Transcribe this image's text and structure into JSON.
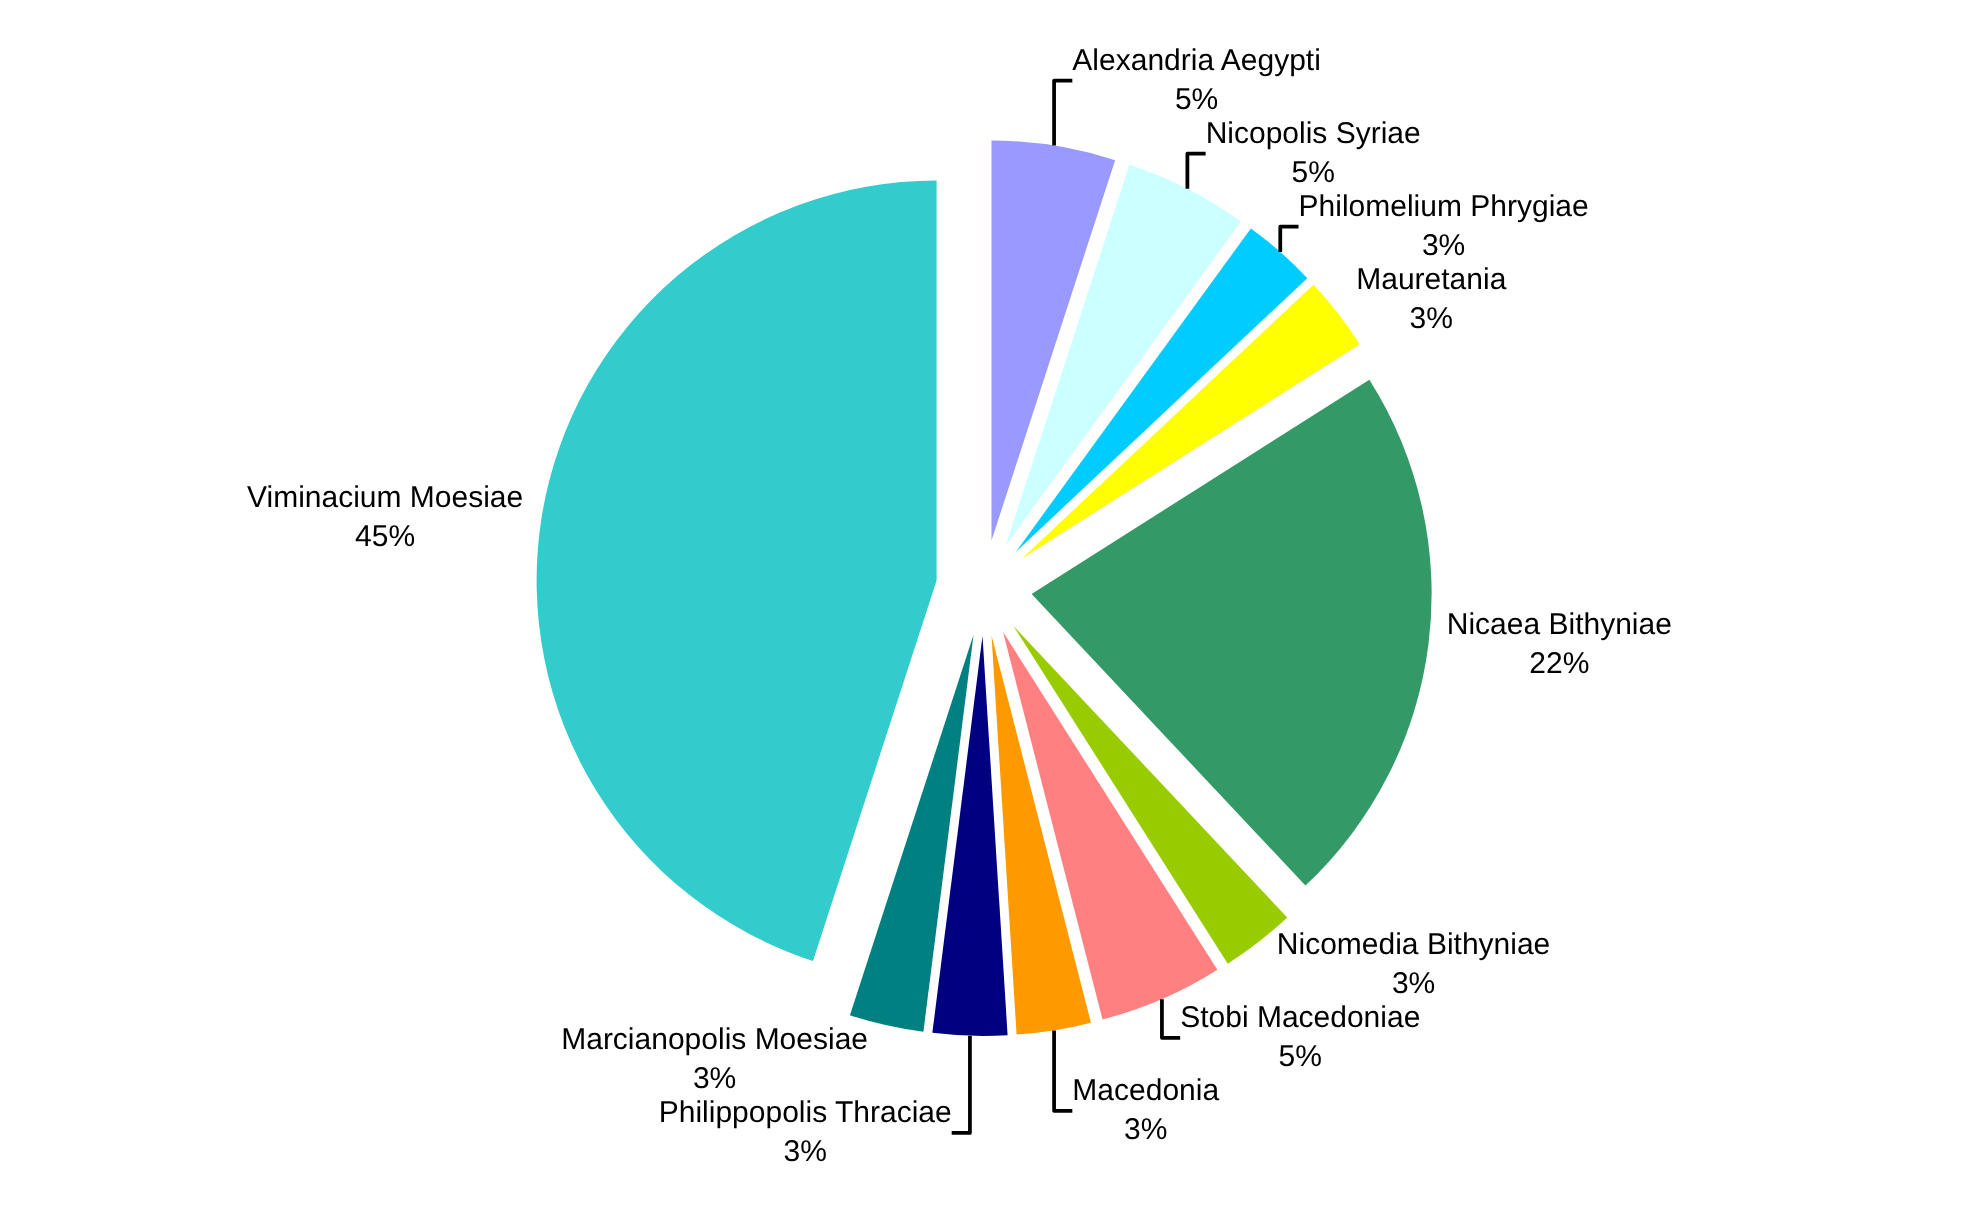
{
  "chart_data": {
    "type": "pie",
    "categories": [
      "Alexandria Aegypti",
      "Nicopolis Syriae",
      "Philomelium Phrygiae",
      "Mauretania",
      "Nicaea Bithyniae",
      "Nicomedia Bithyniae",
      "Stobi Macedoniae",
      "Macedonia",
      "Philippopolis Thraciae",
      "Marcianopolis Moesiae",
      "Viminacium Moesiae"
    ],
    "values": [
      5,
      5,
      3,
      3,
      22,
      3,
      5,
      3,
      3,
      3,
      45
    ],
    "value_labels": [
      "5%",
      "5%",
      "3%",
      "3%",
      "22%",
      "3%",
      "5%",
      "3%",
      "3%",
      "3%",
      "45%"
    ],
    "colors": [
      "#9999ff",
      "#ccffff",
      "#00ccff",
      "#ffff00",
      "#339966",
      "#99cc00",
      "#ff8080",
      "#ff9900",
      "#000080",
      "#008080",
      "#33cccc"
    ],
    "legend": false
  }
}
